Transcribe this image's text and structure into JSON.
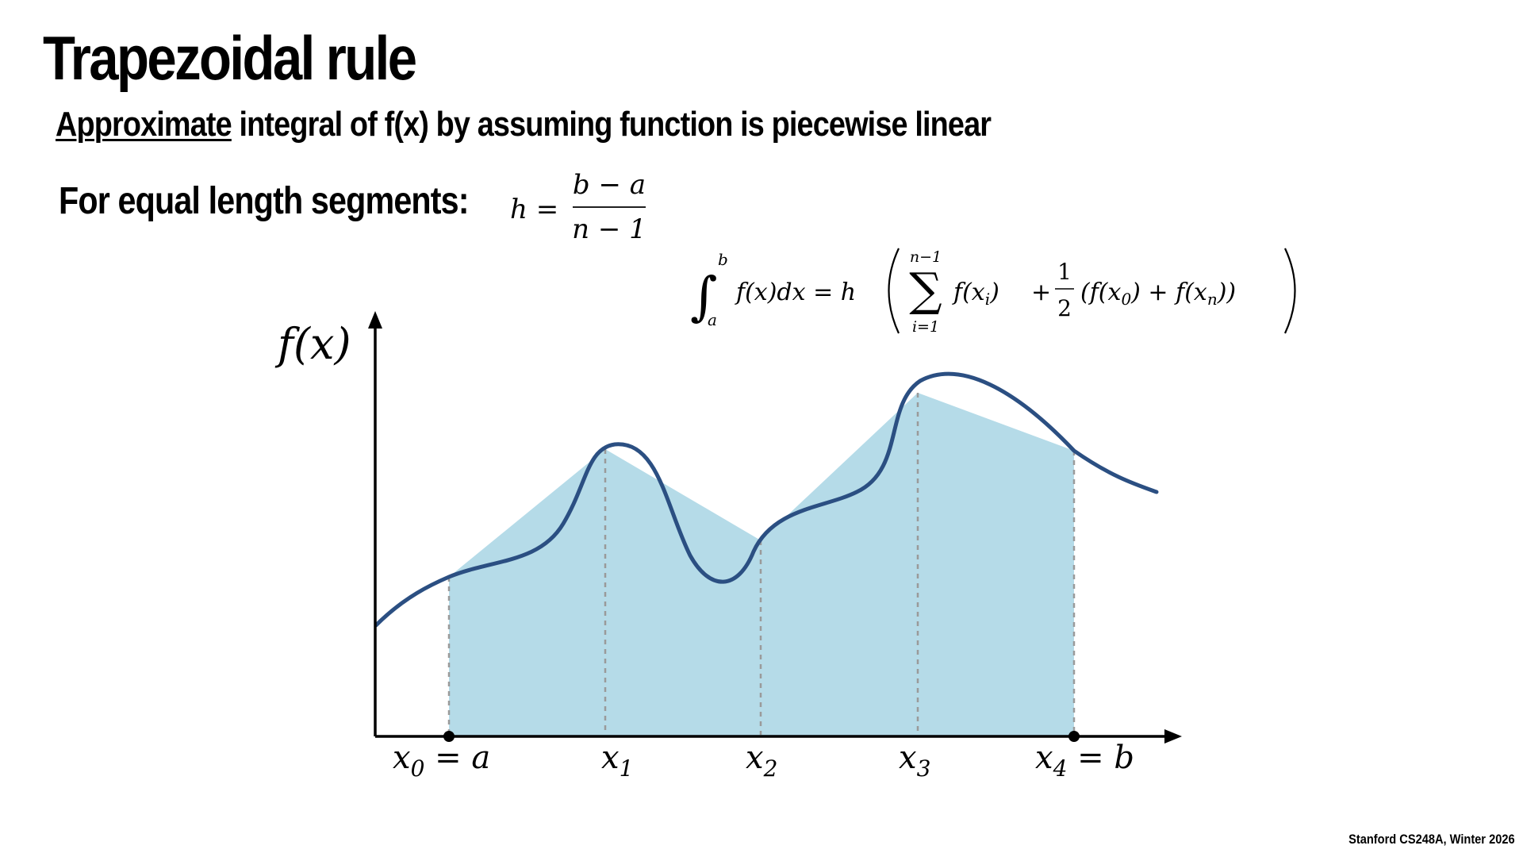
{
  "slide": {
    "title": "Trapezoidal rule",
    "subtitle_underlined": "Approximate",
    "subtitle_rest": " integral of f(x) by assuming function is piecewise linear",
    "segments_label": "For equal length segments:",
    "footer": "Stanford CS248A, Winter 2026"
  },
  "formulas": {
    "h_lhs": "h =",
    "h_numerator": "b − a",
    "h_denominator": "n − 1",
    "integral_upper": "b",
    "integral_lower": "a",
    "integral_lhs": "f(x)dx = h",
    "sum_upper": "n−1",
    "sum_lower": "i=1",
    "sum_term": "f(x",
    "sum_term_sub": "i",
    "plus": "+",
    "half_num": "1",
    "half_den": "2",
    "paren_open": "(f(x",
    "sub0": "0",
    "mid": ") + f(x",
    "subn": "n",
    "paren_close": "))"
  },
  "diagram": {
    "y_axis_label": "f(x)",
    "x_labels": [
      {
        "base": "x",
        "sub": "0",
        "suffix": " = a"
      },
      {
        "base": "x",
        "sub": "1",
        "suffix": ""
      },
      {
        "base": "x",
        "sub": "2",
        "suffix": ""
      },
      {
        "base": "x",
        "sub": "3",
        "suffix": ""
      },
      {
        "base": "x",
        "sub": "4",
        "suffix": " = b"
      }
    ],
    "colors": {
      "curve": "#2b4f82",
      "fill": "#b5dbe8",
      "sample_lines": "#9a9a9a",
      "axis": "#000000"
    }
  }
}
